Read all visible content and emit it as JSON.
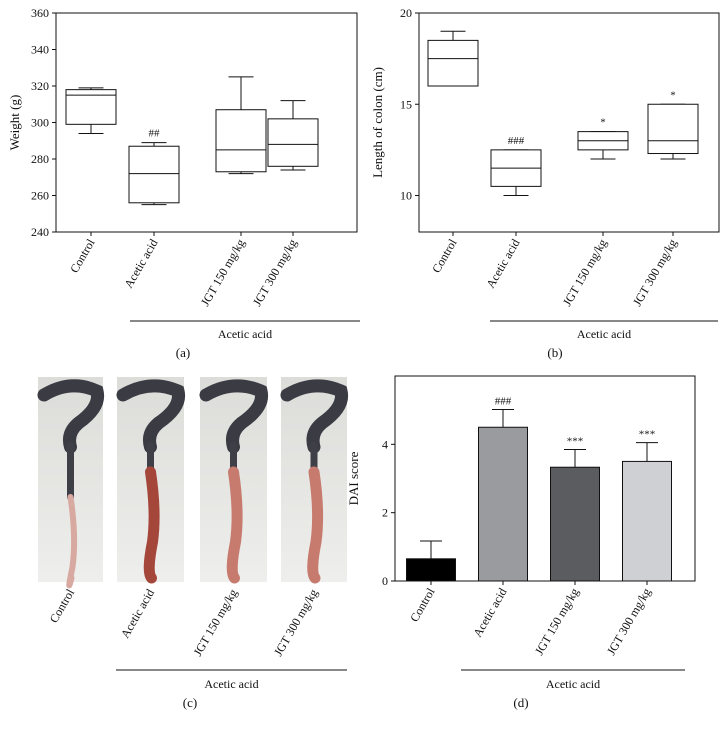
{
  "chart_data": [
    {
      "panel": "(a)",
      "type": "box",
      "ylabel": "Weight (g)",
      "ylim": [
        240,
        360
      ],
      "yticks": [
        240,
        260,
        280,
        300,
        320,
        340,
        360
      ],
      "categories": [
        "Control",
        "Acetic acid",
        "JGT 150 mg/kg",
        "JGT 300 mg/kg"
      ],
      "boxes": [
        {
          "min": 294,
          "q1": 299,
          "median": 315,
          "q3": 318,
          "max": 319,
          "sig": ""
        },
        {
          "min": 255,
          "q1": 256,
          "median": 272,
          "q3": 287,
          "max": 289,
          "sig": "##"
        },
        {
          "min": 272,
          "q1": 273,
          "median": 285,
          "q3": 307,
          "max": 325,
          "sig": ""
        },
        {
          "min": 274,
          "q1": 276,
          "median": 288,
          "q3": 302,
          "max": 312,
          "sig": ""
        }
      ],
      "group_label": "Acetic acid"
    },
    {
      "panel": "(b)",
      "type": "box",
      "ylabel": "Length of colon (cm)",
      "ylim": [
        8,
        20
      ],
      "yticks": [
        10,
        15,
        20
      ],
      "categories": [
        "Control",
        "Acetic acid",
        "JGT 150 mg/kg",
        "JGT 300 mg/kg"
      ],
      "boxes": [
        {
          "min": 16,
          "q1": 16,
          "median": 17.5,
          "q3": 18.5,
          "max": 19,
          "sig": ""
        },
        {
          "min": 10,
          "q1": 10.5,
          "median": 11.5,
          "q3": 12.5,
          "max": 12.5,
          "sig": "###"
        },
        {
          "min": 12,
          "q1": 12.5,
          "median": 13,
          "q3": 13.5,
          "max": 13.5,
          "sig": "*"
        },
        {
          "min": 12,
          "q1": 12.3,
          "median": 13,
          "q3": 15,
          "max": 15,
          "sig": "*"
        }
      ],
      "group_label": "Acetic acid"
    },
    {
      "panel": "(d)",
      "type": "bar",
      "ylabel": "DAI score",
      "ylim": [
        0,
        6
      ],
      "yticks": [
        0,
        2,
        4
      ],
      "categories": [
        "Control",
        "Acetic acid",
        "JGT 150 mg/kg",
        "JGT 300 mg/kg"
      ],
      "values": [
        0.65,
        4.5,
        3.33,
        3.5
      ],
      "errors": [
        0.52,
        0.52,
        0.52,
        0.55
      ],
      "colors": [
        "#000000",
        "#9a9b9f",
        "#5b5c60",
        "#cfd0d4"
      ],
      "sig": [
        "",
        "###",
        "***",
        "***"
      ],
      "group_label": "Acetic acid"
    }
  ],
  "photo_panel": {
    "panel": "(c)",
    "categories": [
      "Control",
      "Acetic acid",
      "JGT 150 mg/kg",
      "JGT 300 mg/kg"
    ],
    "group_label": "Acetic acid"
  }
}
